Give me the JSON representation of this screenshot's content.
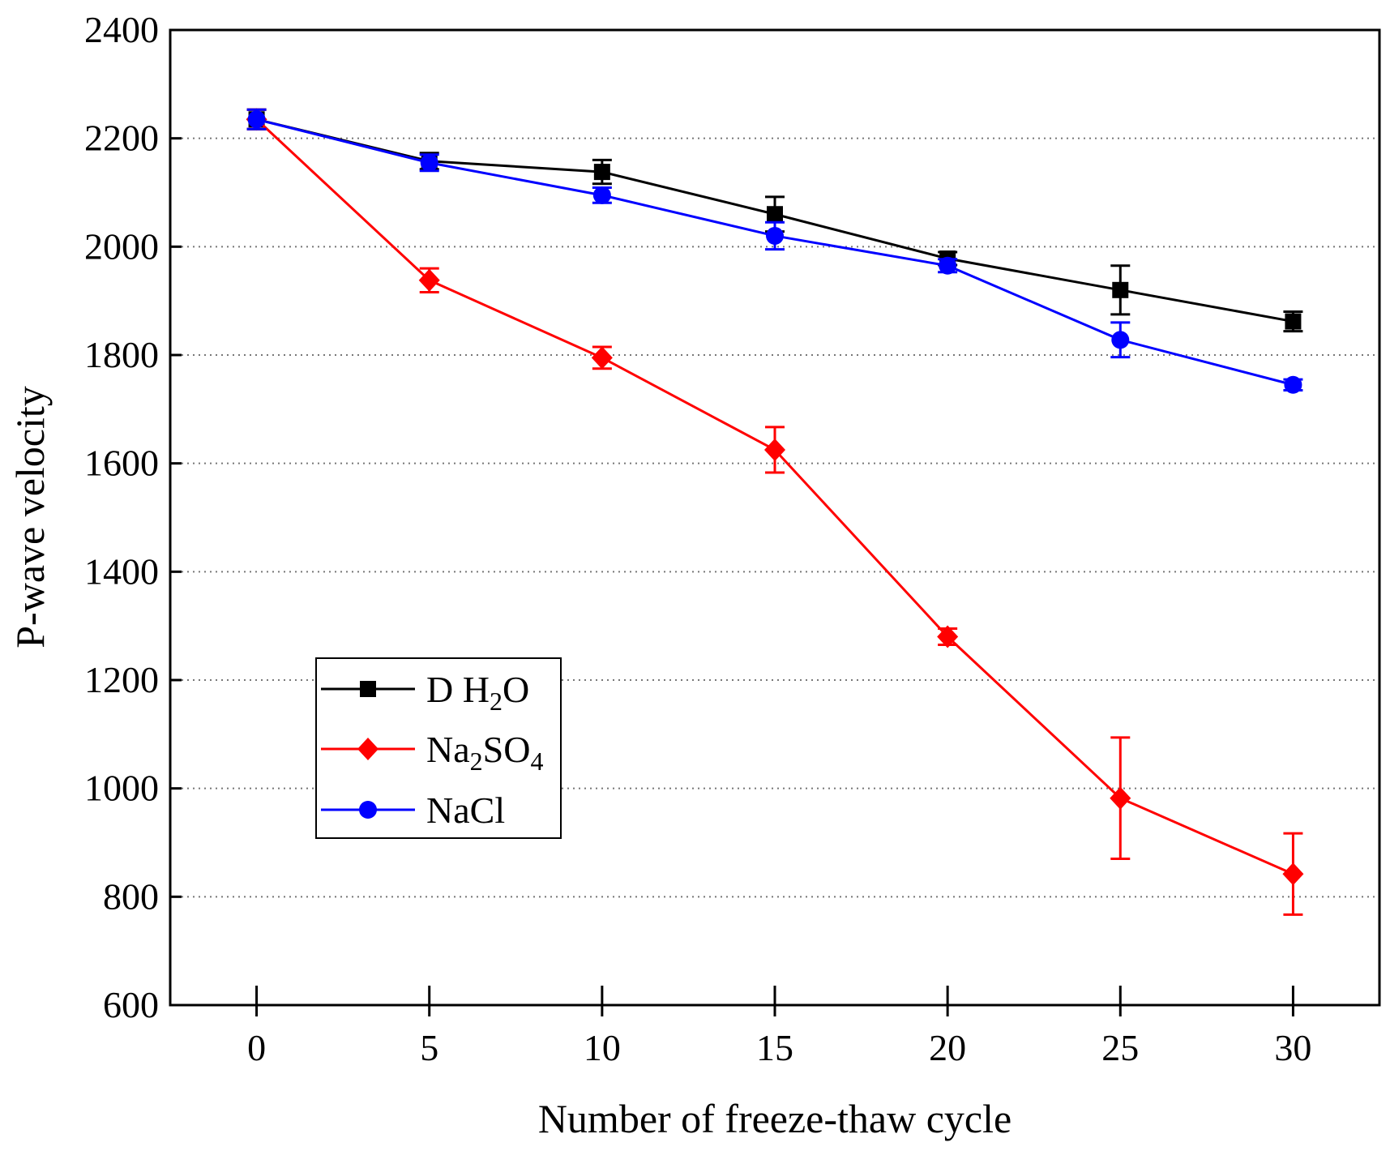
{
  "chart_data": {
    "type": "line",
    "title": "",
    "xlabel": "Number of freeze-thaw cycle",
    "ylabel": "P-wave velocity",
    "x": [
      0,
      5,
      10,
      15,
      20,
      25,
      30
    ],
    "xlim": [
      -2.5,
      32.5
    ],
    "ylim": [
      600,
      2400
    ],
    "xticks": [
      0,
      5,
      10,
      15,
      20,
      25,
      30
    ],
    "yticks": [
      600,
      800,
      1000,
      1200,
      1400,
      1600,
      1800,
      2000,
      2200,
      2400
    ],
    "grid": "horizontal dotted",
    "legend_position": "lower-left",
    "series": [
      {
        "name": "D H2O",
        "legend_parts": [
          "D H",
          "2",
          "O"
        ],
        "color": "#000000",
        "marker": "square",
        "values": [
          2235,
          2158,
          2138,
          2060,
          1978,
          1920,
          1862
        ],
        "errors": [
          18,
          15,
          22,
          32,
          12,
          45,
          18
        ]
      },
      {
        "name": "Na2SO4",
        "legend_parts": [
          "Na",
          "2",
          "SO",
          "4"
        ],
        "color": "#ff0000",
        "marker": "diamond",
        "values": [
          2235,
          1938,
          1795,
          1625,
          1280,
          982,
          842
        ],
        "errors": [
          18,
          22,
          20,
          42,
          15,
          112,
          75
        ]
      },
      {
        "name": "NaCl",
        "legend_parts": [
          "NaCl"
        ],
        "color": "#0000ff",
        "marker": "circle",
        "values": [
          2235,
          2155,
          2095,
          2020,
          1965,
          1828,
          1745
        ],
        "errors": [
          18,
          15,
          14,
          25,
          12,
          32,
          10
        ]
      }
    ]
  }
}
